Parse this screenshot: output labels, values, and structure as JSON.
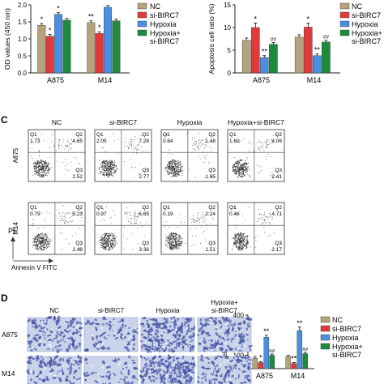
{
  "colors": {
    "NC": "#b5a27e",
    "si-BIRC7": "#e03a3a",
    "Hypoxia": "#4a8fe0",
    "Hypoxia+si-BIRC7": "#1d8a3c",
    "axis": "#222222",
    "scatter_dot": "#333333"
  },
  "panel_labels": {
    "C": "C",
    "D": "D"
  },
  "legend": {
    "NC": "NC",
    "si-BIRC7": "si-BIRC7",
    "Hypoxia": "Hypoxia",
    "Hypoxia_plus_1": "Hypoxia+",
    "Hypoxia_plus_2": "si-BIRC7"
  },
  "chart_data": [
    {
      "id": "od-chart",
      "type": "bar",
      "ylabel": "OD values (450 nm)",
      "ylim": [
        0,
        2.0
      ],
      "yticks": [
        "0.0",
        "0.5",
        "1.0",
        "1.5",
        "2.0"
      ],
      "categories": [
        "A875",
        "M14"
      ],
      "series": [
        {
          "name": "NC",
          "values": [
            1.4,
            1.48
          ],
          "errors": [
            0.05,
            0.05
          ]
        },
        {
          "name": "si-BIRC7",
          "values": [
            1.08,
            1.16
          ],
          "errors": [
            0.05,
            0.05
          ]
        },
        {
          "name": "Hypoxia",
          "values": [
            1.72,
            1.93
          ],
          "errors": [
            0.05,
            0.05
          ]
        },
        {
          "name": "Hypoxia+si-BIRC7",
          "values": [
            1.55,
            1.53
          ],
          "errors": [
            0.05,
            0.05
          ]
        }
      ],
      "annotations": [
        [
          "*",
          "*",
          "*",
          ""
        ],
        [
          "**",
          "*",
          "",
          ""
        ]
      ]
    },
    {
      "id": "apoptosis-chart",
      "type": "bar",
      "ylabel": "Apoptosis cell ratio (%)",
      "ylim": [
        0,
        15
      ],
      "yticks": [
        "0",
        "5",
        "10",
        "15"
      ],
      "categories": [
        "A875",
        "M14"
      ],
      "series": [
        {
          "name": "NC",
          "values": [
            7.2,
            7.9
          ],
          "errors": [
            0.5,
            0.5
          ]
        },
        {
          "name": "si-BIRC7",
          "values": [
            10.0,
            10.1
          ],
          "errors": [
            1.0,
            0.9
          ]
        },
        {
          "name": "Hypoxia",
          "values": [
            3.4,
            3.8
          ],
          "errors": [
            0.4,
            0.4
          ]
        },
        {
          "name": "Hypoxia+si-BIRC7",
          "values": [
            6.3,
            6.8
          ],
          "errors": [
            0.4,
            0.4
          ]
        }
      ],
      "annotations": [
        [
          "",
          "*",
          "**",
          "##"
        ],
        [
          "",
          "*",
          "**",
          "##"
        ]
      ]
    },
    {
      "id": "cell-number-chart",
      "type": "bar",
      "ylabel": "Cell numbers",
      "ylim": [
        0,
        400
      ],
      "yticks": [
        "0",
        "100",
        "200",
        "300",
        "400"
      ],
      "categories": [
        "A875",
        "M14"
      ],
      "series": [
        {
          "name": "NC",
          "values": [
            78,
            90
          ],
          "errors": [
            12,
            10
          ]
        },
        {
          "name": "si-BIRC7",
          "values": [
            45,
            38
          ],
          "errors": [
            8,
            8
          ]
        },
        {
          "name": "Hypoxia",
          "values": [
            235,
            285
          ],
          "errors": [
            15,
            25
          ]
        },
        {
          "name": "Hypoxia+si-BIRC7",
          "values": [
            100,
            112
          ],
          "errors": [
            10,
            10
          ]
        }
      ],
      "annotations": [
        [
          "",
          "*",
          "**",
          "##"
        ],
        [
          "",
          "**",
          "**",
          "##"
        ]
      ]
    }
  ],
  "flow": {
    "columns": [
      "NC",
      "si-BIRC7",
      "Hypoxia",
      "Hypoxia+si-BIRC7"
    ],
    "rows": [
      {
        "name": "A875",
        "cells": [
          {
            "q1": "1.73",
            "q2": "4.65",
            "q3": "2.52"
          },
          {
            "q1": "2.05",
            "q2": "7.28",
            "q3": "2.77"
          },
          {
            "q1": "0.64",
            "q2": "1.48",
            "q3": "1.95"
          },
          {
            "q1": "1.60",
            "q2": "4.06",
            "q3": "2.41"
          }
        ]
      },
      {
        "name": "M14",
        "cells": [
          {
            "q1": "0.79",
            "q2": "5.23",
            "q3": "2.48"
          },
          {
            "q1": "0.97",
            "q2": "6.65",
            "q3": "3.36"
          },
          {
            "q1": "0.19",
            "q2": "2.24",
            "q3": "1.51"
          },
          {
            "q1": "0.46",
            "q2": "4.71",
            "q3": "2.17"
          }
        ]
      }
    ],
    "quadrant_labels": {
      "q1": "Q1",
      "q2": "Q2",
      "q3": "Q3"
    },
    "y_axis_label": "PI",
    "x_axis_label": "Annexin V  FITC"
  },
  "transwell": {
    "columns": [
      "NC",
      "si-BIRC7",
      "Hypoxia"
    ],
    "last_column": [
      "Hypoxia+",
      "si-BIRC7"
    ],
    "rows": [
      "A875",
      "M14"
    ]
  }
}
